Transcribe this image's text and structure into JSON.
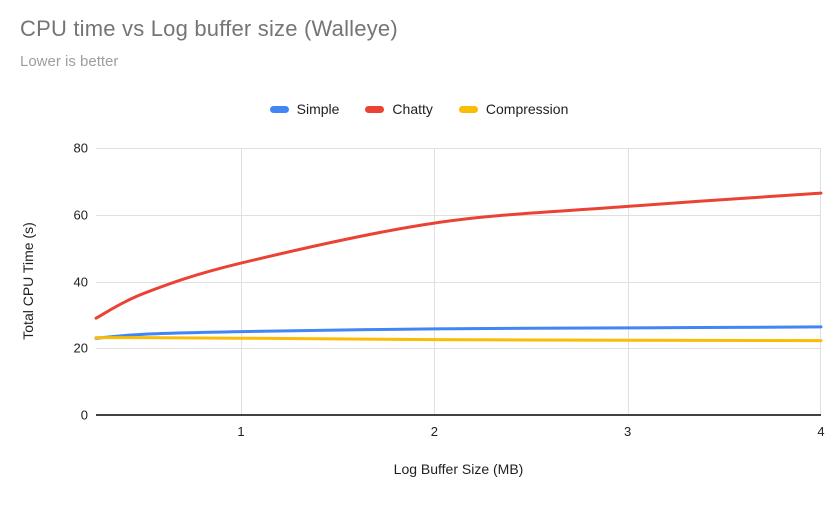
{
  "header": {
    "title": "CPU time vs Log buffer size (Walleye)",
    "subtitle": "Lower is better"
  },
  "colors": {
    "simple": "#4285F4",
    "chatty": "#EA4335",
    "compression": "#FBBC04",
    "title_text": "#757575",
    "subtitle_text": "#9E9E9E",
    "gridline": "#E0E0E0",
    "axis_line": "#424242",
    "tick_label": "#1F1F1F"
  },
  "chart_data": {
    "type": "line",
    "title": "CPU time vs Log buffer size (Walleye)",
    "subtitle": "Lower is better",
    "xlabel": "Log Buffer Size (MB)",
    "ylabel": "Total CPU Time (s)",
    "x": [
      0.25,
      0.5,
      1,
      2,
      3,
      4
    ],
    "series": [
      {
        "name": "Simple",
        "color": "#4285F4",
        "values": [
          23.0,
          24.2,
          25.0,
          25.8,
          26.1,
          26.4
        ]
      },
      {
        "name": "Chatty",
        "color": "#EA4335",
        "values": [
          29.0,
          36.5,
          45.5,
          57.5,
          62.5,
          66.5
        ]
      },
      {
        "name": "Compression",
        "color": "#FBBC04",
        "values": [
          23.2,
          23.2,
          23.0,
          22.6,
          22.4,
          22.3
        ]
      }
    ],
    "xlim": [
      0.25,
      4
    ],
    "ylim": [
      0,
      80
    ],
    "x_ticks": [
      1,
      2,
      3,
      4
    ],
    "y_ticks": [
      0,
      20,
      40,
      60,
      80
    ],
    "grid": true,
    "legend_position": "top",
    "line_style": "smooth",
    "markers": false
  }
}
